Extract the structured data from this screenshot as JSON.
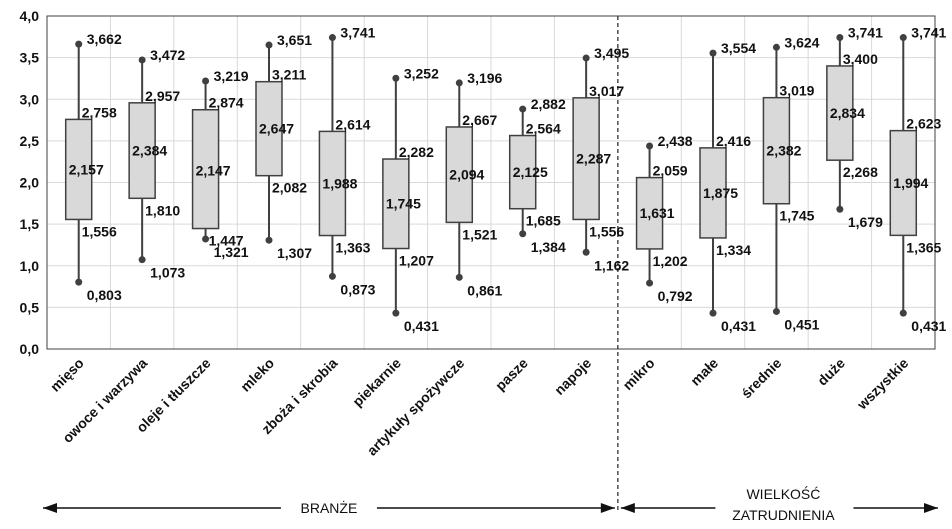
{
  "chart_data": {
    "type": "box",
    "ylim": [
      0,
      4
    ],
    "yticks": [
      "0,0",
      "0,5",
      "1,0",
      "1,5",
      "2,0",
      "2,5",
      "3,0",
      "3,5",
      "4,0"
    ],
    "grid": true,
    "categories": [
      "mięso",
      "owoce i warzywa",
      "oleje i tłuszcze",
      "mleko",
      "zboża i skrobia",
      "piekarnie",
      "artykuły spożywcze",
      "pasze",
      "napoje",
      "mikro",
      "małe",
      "średnie",
      "duże",
      "wszystkie"
    ],
    "boxes": [
      {
        "max": 3.662,
        "q3": 2.758,
        "median": 2.157,
        "q1": 1.556,
        "min": 0.803,
        "labels": {
          "max": "3,662",
          "q3": "2,758",
          "median": "2,157",
          "q1": "1,556",
          "min": "0,803"
        }
      },
      {
        "max": 3.472,
        "q3": 2.957,
        "median": 2.384,
        "q1": 1.81,
        "min": 1.073,
        "labels": {
          "max": "3,472",
          "q3": "2,957",
          "median": "2,384",
          "q1": "1,810",
          "min": "1,073"
        }
      },
      {
        "max": 3.219,
        "q3": 2.874,
        "median": 2.147,
        "q1": 1.447,
        "min": 1.321,
        "labels": {
          "max": "3,219",
          "q3": "2,874",
          "median": "2,147",
          "q1": "1,447",
          "min": "1,321"
        }
      },
      {
        "max": 3.651,
        "q3": 3.211,
        "median": 2.647,
        "q1": 2.082,
        "min": 1.307,
        "labels": {
          "max": "3,651",
          "q3": "3,211",
          "median": "2,647",
          "q1": "2,082",
          "min": "1,307"
        }
      },
      {
        "max": 3.741,
        "q3": 2.614,
        "median": 1.988,
        "q1": 1.363,
        "min": 0.873,
        "labels": {
          "max": "3,741",
          "q3": "2,614",
          "median": "1,988",
          "q1": "1,363",
          "min": "0,873"
        }
      },
      {
        "max": 3.252,
        "q3": 2.282,
        "median": 1.745,
        "q1": 1.207,
        "min": 0.431,
        "labels": {
          "max": "3,252",
          "q3": "2,282",
          "median": "1,745",
          "q1": "1,207",
          "min": "0,431"
        }
      },
      {
        "max": 3.196,
        "q3": 2.667,
        "median": 2.094,
        "q1": 1.521,
        "min": 0.861,
        "labels": {
          "max": "3,196",
          "q3": "2,667",
          "median": "2,094",
          "q1": "1,521",
          "min": "0,861"
        }
      },
      {
        "max": 2.882,
        "q3": 2.564,
        "median": 2.125,
        "q1": 1.685,
        "min": 1.384,
        "labels": {
          "max": "2,882",
          "q3": "2,564",
          "median": "2,125",
          "q1": "1,685",
          "min": "1,384"
        }
      },
      {
        "max": 3.495,
        "q3": 3.017,
        "median": 2.287,
        "q1": 1.556,
        "min": 1.162,
        "labels": {
          "max": "3,495",
          "q3": "3,017",
          "median": "2,287",
          "q1": "1,556",
          "min": "1,162"
        }
      },
      {
        "max": 2.438,
        "q3": 2.059,
        "median": 1.631,
        "q1": 1.202,
        "min": 0.792,
        "labels": {
          "max": "2,438",
          "q3": "2,059",
          "median": "1,631",
          "q1": "1,202",
          "min": "0,792"
        }
      },
      {
        "max": 3.554,
        "q3": 2.416,
        "median": 1.875,
        "q1": 1.334,
        "min": 0.431,
        "labels": {
          "max": "3,554",
          "q3": "2,416",
          "median": "1,875",
          "q1": "1,334",
          "min": "0,431"
        }
      },
      {
        "max": 3.624,
        "q3": 3.019,
        "median": 2.382,
        "q1": 1.745,
        "min": 0.451,
        "labels": {
          "max": "3,624",
          "q3": "3,019",
          "median": "2,382",
          "q1": "1,745",
          "min": "0,451"
        }
      },
      {
        "max": 3.741,
        "q3": 3.4,
        "median": 2.834,
        "q1": 2.268,
        "min": 1.679,
        "labels": {
          "max": "3,741",
          "q3": "3,400",
          "median": "2,834",
          "q1": "2,268",
          "min": "1,679"
        }
      },
      {
        "max": 3.741,
        "q3": 2.623,
        "median": 1.994,
        "q1": 1.365,
        "min": 0.431,
        "labels": {
          "max": "3,741",
          "q3": "2,623",
          "median": "1,994",
          "q1": "1,365",
          "min": "0,431"
        }
      }
    ],
    "groups": [
      {
        "label": "BRANŻE",
        "categories": 9
      },
      {
        "label_lines": [
          "WIELKOŚĆ",
          "ZATRUDNIENIA"
        ],
        "categories": 5
      }
    ],
    "colors": {
      "box_fill": "#d9d9d9",
      "box_stroke": "#404040",
      "whisker": "#404040",
      "grid": "#d9d9d9",
      "axis": "#404040"
    }
  }
}
